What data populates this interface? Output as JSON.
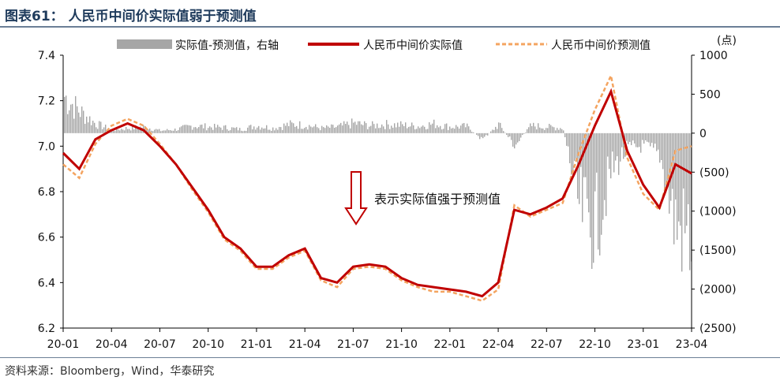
{
  "header": {
    "title": "图表61：  人民币中间价实际值弱于预测值"
  },
  "footer": {
    "source": "资料来源：Bloomberg，Wind，华泰研究"
  },
  "chart_data": {
    "type": "line",
    "x_tick_labels": [
      "20-01",
      "20-04",
      "20-07",
      "20-10",
      "21-01",
      "21-04",
      "21-07",
      "21-10",
      "22-01",
      "22-04",
      "22-07",
      "22-10",
      "23-01",
      "23-04"
    ],
    "y_left": {
      "ticks": [
        6.2,
        6.4,
        6.6,
        6.8,
        7.0,
        7.2,
        7.4
      ],
      "tick_labels": [
        "6.2",
        "6.4",
        "6.6",
        "6.8",
        "7.0",
        "7.2",
        "7.4"
      ],
      "range": [
        6.2,
        7.4
      ]
    },
    "y_right": {
      "unit_label": "(点)",
      "ticks": [
        1000,
        500,
        0,
        -500,
        -1000,
        -1500,
        -2000,
        -2500
      ],
      "tick_labels": [
        "1000",
        "500",
        "0",
        "(500)",
        "(1000)",
        "(1500)",
        "(2000)",
        "(2500)"
      ],
      "range": [
        -2500,
        1000
      ]
    },
    "legend": [
      {
        "name": "实际值-预测值，右轴",
        "color": "#a6a6a6",
        "kind": "bar"
      },
      {
        "name": "人民币中间价实际值",
        "color": "#c00000",
        "kind": "line"
      },
      {
        "name": "人民币中间价预测值",
        "color": "#f4a460",
        "kind": "dashed"
      }
    ],
    "annotation": "表示实际值强于预测值",
    "series": [
      {
        "name": "人民币中间价实际值",
        "axis": "left",
        "x": [
          "2020-01",
          "2020-02",
          "2020-03",
          "2020-04",
          "2020-05",
          "2020-06",
          "2020-07",
          "2020-08",
          "2020-09",
          "2020-10",
          "2020-11",
          "2020-12",
          "2021-01",
          "2021-02",
          "2021-03",
          "2021-04",
          "2021-05",
          "2021-06",
          "2021-07",
          "2021-08",
          "2021-09",
          "2021-10",
          "2021-11",
          "2021-12",
          "2022-01",
          "2022-02",
          "2022-03",
          "2022-04",
          "2022-05",
          "2022-06",
          "2022-07",
          "2022-08",
          "2022-09",
          "2022-10",
          "2022-11",
          "2022-12",
          "2023-01",
          "2023-02",
          "2023-03",
          "2023-04"
        ],
        "values": [
          6.97,
          6.9,
          7.03,
          7.07,
          7.1,
          7.07,
          7.0,
          6.92,
          6.82,
          6.72,
          6.6,
          6.55,
          6.47,
          6.47,
          6.52,
          6.55,
          6.42,
          6.4,
          6.47,
          6.48,
          6.47,
          6.42,
          6.39,
          6.38,
          6.37,
          6.36,
          6.34,
          6.4,
          6.72,
          6.7,
          6.73,
          6.77,
          6.92,
          7.09,
          7.24,
          6.98,
          6.83,
          6.73,
          6.92,
          6.88
        ]
      },
      {
        "name": "人民币中间价预测值",
        "axis": "left",
        "x": [
          "2020-01",
          "2020-02",
          "2020-03",
          "2020-04",
          "2020-05",
          "2020-06",
          "2020-07",
          "2020-08",
          "2020-09",
          "2020-10",
          "2020-11",
          "2020-12",
          "2021-01",
          "2021-02",
          "2021-03",
          "2021-04",
          "2021-05",
          "2021-06",
          "2021-07",
          "2021-08",
          "2021-09",
          "2021-10",
          "2021-11",
          "2021-12",
          "2022-01",
          "2022-02",
          "2022-03",
          "2022-04",
          "2022-05",
          "2022-06",
          "2022-07",
          "2022-08",
          "2022-09",
          "2022-10",
          "2022-11",
          "2022-12",
          "2023-01",
          "2023-02",
          "2023-03",
          "2023-04"
        ],
        "values": [
          6.92,
          6.86,
          7.01,
          7.09,
          7.12,
          7.09,
          7.01,
          6.92,
          6.81,
          6.71,
          6.59,
          6.54,
          6.46,
          6.46,
          6.51,
          6.54,
          6.41,
          6.38,
          6.46,
          6.47,
          6.46,
          6.41,
          6.38,
          6.36,
          6.36,
          6.34,
          6.32,
          6.37,
          6.74,
          6.69,
          6.72,
          6.75,
          6.97,
          7.16,
          7.31,
          6.95,
          6.79,
          6.72,
          6.98,
          7.0
        ]
      },
      {
        "name": "实际值-预测值，右轴",
        "axis": "right",
        "x": [
          "2020-01",
          "2020-02",
          "2020-03",
          "2020-04",
          "2020-05",
          "2020-06",
          "2020-07",
          "2020-08",
          "2020-09",
          "2020-10",
          "2020-11",
          "2020-12",
          "2021-01",
          "2021-02",
          "2021-03",
          "2021-04",
          "2021-05",
          "2021-06",
          "2021-07",
          "2021-08",
          "2021-09",
          "2021-10",
          "2021-11",
          "2021-12",
          "2022-01",
          "2022-02",
          "2022-03",
          "2022-04",
          "2022-05",
          "2022-06",
          "2022-07",
          "2022-08",
          "2022-09",
          "2022-10",
          "2022-11",
          "2022-12",
          "2023-01",
          "2023-02",
          "2023-03",
          "2023-04"
        ],
        "values": [
          600,
          350,
          150,
          50,
          80,
          100,
          40,
          60,
          120,
          100,
          90,
          60,
          120,
          80,
          140,
          130,
          80,
          100,
          160,
          120,
          140,
          130,
          110,
          150,
          100,
          110,
          -100,
          140,
          -200,
          120,
          100,
          80,
          -1200,
          -1500,
          -600,
          -250,
          -200,
          -350,
          -1500,
          -1700
        ]
      }
    ]
  }
}
